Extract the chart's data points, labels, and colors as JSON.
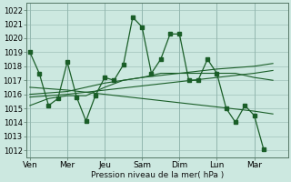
{
  "background_color": "#cce8e0",
  "grid_color": "#a8c8c0",
  "line_color": "#1a5e28",
  "xlabel": "Pression niveau de la mer( hPa )",
  "ylim": [
    1011.5,
    1022.5
  ],
  "yticks": [
    1012,
    1013,
    1014,
    1015,
    1016,
    1017,
    1018,
    1019,
    1020,
    1021,
    1022
  ],
  "day_labels": [
    "Ven",
    "Mer",
    "Jeu",
    "Sam",
    "Dim",
    "Lun",
    "Mar"
  ],
  "day_positions": [
    0,
    2,
    4,
    6,
    8,
    10,
    12
  ],
  "xlim": [
    -0.2,
    13.8
  ],
  "series1": [
    [
      0.0,
      1019.0
    ],
    [
      0.5,
      1017.5
    ],
    [
      1.0,
      1015.2
    ],
    [
      1.5,
      1015.7
    ],
    [
      2.0,
      1018.3
    ],
    [
      2.5,
      1015.8
    ],
    [
      3.0,
      1014.1
    ],
    [
      3.5,
      1015.9
    ],
    [
      4.0,
      1017.2
    ],
    [
      4.5,
      1017.0
    ],
    [
      5.0,
      1018.1
    ],
    [
      5.5,
      1021.5
    ],
    [
      6.0,
      1020.8
    ],
    [
      6.5,
      1017.5
    ],
    [
      7.0,
      1018.5
    ],
    [
      7.5,
      1020.3
    ],
    [
      8.0,
      1020.3
    ],
    [
      8.5,
      1017.0
    ],
    [
      9.0,
      1017.0
    ],
    [
      9.5,
      1018.5
    ],
    [
      10.0,
      1017.5
    ],
    [
      10.5,
      1015.0
    ],
    [
      11.0,
      1014.0
    ],
    [
      11.5,
      1015.2
    ],
    [
      12.0,
      1014.5
    ],
    [
      12.5,
      1012.1
    ]
  ],
  "series2": [
    [
      0.0,
      1015.2
    ],
    [
      1.0,
      1015.7
    ],
    [
      2.0,
      1015.9
    ],
    [
      3.0,
      1015.9
    ],
    [
      4.0,
      1016.5
    ],
    [
      5.0,
      1017.0
    ],
    [
      6.0,
      1017.2
    ],
    [
      7.0,
      1017.5
    ],
    [
      8.0,
      1017.5
    ],
    [
      9.0,
      1017.5
    ],
    [
      10.0,
      1017.5
    ],
    [
      11.0,
      1017.5
    ],
    [
      12.0,
      1017.2
    ],
    [
      13.0,
      1017.0
    ]
  ],
  "series3": [
    [
      0.0,
      1015.8
    ],
    [
      2.0,
      1016.0
    ],
    [
      4.0,
      1016.3
    ],
    [
      6.0,
      1016.6
    ],
    [
      8.0,
      1016.9
    ],
    [
      10.0,
      1017.2
    ],
    [
      12.0,
      1017.5
    ],
    [
      13.0,
      1017.7
    ]
  ],
  "series4": [
    [
      0.0,
      1016.5
    ],
    [
      2.0,
      1016.3
    ],
    [
      4.0,
      1016.0
    ],
    [
      6.0,
      1015.7
    ],
    [
      8.0,
      1015.4
    ],
    [
      10.0,
      1015.1
    ],
    [
      12.0,
      1014.8
    ],
    [
      13.0,
      1014.6
    ]
  ],
  "series5": [
    [
      0.0,
      1016.0
    ],
    [
      2.0,
      1016.2
    ],
    [
      4.0,
      1016.8
    ],
    [
      6.0,
      1017.2
    ],
    [
      8.0,
      1017.5
    ],
    [
      10.0,
      1017.8
    ],
    [
      12.0,
      1018.0
    ],
    [
      13.0,
      1018.2
    ]
  ]
}
